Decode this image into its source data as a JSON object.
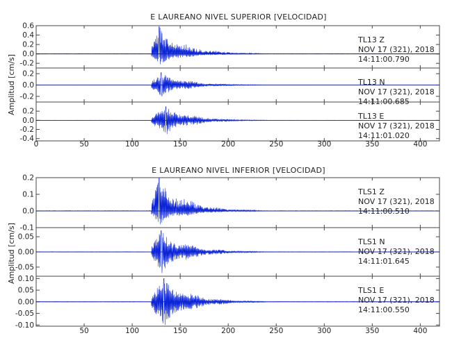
{
  "colors": {
    "trace": "#0b24d8",
    "frame": "#444444",
    "text": "#222222"
  },
  "chart_data": [
    {
      "type": "line",
      "title": "E LAUREANO NIVEL SUPERIOR [VELOCIDAD]",
      "xlabel": "",
      "ylabel": "Amplitud [cm/s]",
      "xlim": [
        0,
        420
      ],
      "x_ticks": [
        "0",
        "50",
        "100",
        "150",
        "200",
        "250",
        "300",
        "350",
        "400"
      ],
      "grid": false,
      "series": [
        {
          "name": "TL13 Z",
          "station": "TL13",
          "component": "Z",
          "date": "NOV 17 (321), 2018",
          "time": "14:11:00.790",
          "ylim": [
            -0.3,
            0.6
          ],
          "y_ticks": [
            "0.6",
            "0.4",
            "0.2",
            "0.0",
            "-0.2"
          ],
          "onset_s": 120,
          "peak_s": 128,
          "peak_amplitude": 0.58,
          "min_amplitude": -0.22,
          "coda_end_s": 300
        },
        {
          "name": "TL13 N",
          "station": "TL13",
          "component": "N",
          "date": "NOV 17 (321), 2018",
          "time": "14:11:00.685",
          "ylim": [
            -0.3,
            0.3
          ],
          "y_ticks": [
            "0.2",
            "0.0",
            "-0.2"
          ],
          "onset_s": 120,
          "peak_s": 130,
          "peak_amplitude": 0.22,
          "min_amplitude": -0.2,
          "coda_end_s": 300
        },
        {
          "name": "TL13 E",
          "station": "TL13",
          "component": "E",
          "date": "NOV 17 (321), 2018",
          "time": "14:11:01.020",
          "ylim": [
            -0.45,
            0.4
          ],
          "y_ticks": [
            "0.2",
            "0.0",
            "-0.2",
            "-0.4"
          ],
          "onset_s": 120,
          "peak_s": 135,
          "peak_amplitude": 0.3,
          "min_amplitude": -0.3,
          "coda_end_s": 300
        }
      ]
    },
    {
      "type": "line",
      "title": "E LAUREANO NIVEL INFERIOR [VELOCIDAD]",
      "xlabel": "",
      "ylabel": "Amplitud [cm/s]",
      "xlim": [
        0,
        420
      ],
      "x_ticks": [
        "50",
        "100",
        "150",
        "200",
        "250",
        "300",
        "350",
        "400"
      ],
      "grid": false,
      "series": [
        {
          "name": "TLS1 Z",
          "station": "TLS1",
          "component": "Z",
          "date": "NOV 17 (321), 2018",
          "time": "14:11:00.510",
          "ylim": [
            -0.1,
            0.2
          ],
          "y_ticks": [
            "0.2",
            "0.1",
            "0.0",
            "-0.1"
          ],
          "onset_s": 120,
          "peak_s": 128,
          "peak_amplitude": 0.2,
          "min_amplitude": -0.08,
          "coda_end_s": 300
        },
        {
          "name": "TLS1 N",
          "station": "TLS1",
          "component": "N",
          "date": "NOV 17 (321), 2018",
          "time": "14:11:01.645",
          "ylim": [
            -0.08,
            0.08
          ],
          "y_ticks": [
            "0.05",
            "0.00",
            "-0.05"
          ],
          "onset_s": 120,
          "peak_s": 130,
          "peak_amplitude": 0.07,
          "min_amplitude": -0.07,
          "coda_end_s": 300
        },
        {
          "name": "TLS1 E",
          "station": "TLS1",
          "component": "E",
          "date": "NOV 17 (321), 2018",
          "time": "14:11:00.550",
          "ylim": [
            -0.105,
            0.11
          ],
          "y_ticks": [
            "0.10",
            "0.05",
            "0.00",
            "-0.05",
            "-0.10"
          ],
          "onset_s": 120,
          "peak_s": 133,
          "peak_amplitude": 0.1,
          "min_amplitude": -0.1,
          "coda_end_s": 300
        }
      ]
    }
  ]
}
